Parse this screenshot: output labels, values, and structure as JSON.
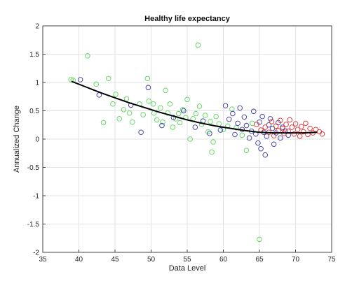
{
  "chart_data": {
    "type": "scatter",
    "title": "Healthy life expectancy",
    "xlabel": "Data Level",
    "ylabel": "Annualized Change",
    "xlim": [
      35,
      75
    ],
    "ylim": [
      -2,
      2
    ],
    "xticks": [
      35,
      40,
      45,
      50,
      55,
      60,
      65,
      70,
      75
    ],
    "yticks": [
      -2,
      -1.5,
      -1,
      -0.5,
      0,
      0.5,
      1,
      1.5,
      2
    ],
    "grid": true,
    "legend": "none",
    "colors": {
      "green": "#55d855",
      "blue": "#3a3aa8",
      "red": "#e03030",
      "fit": "#000000",
      "grid": "#e3e3e3",
      "axes": "#444444"
    },
    "series": [
      {
        "color": "green",
        "points": [
          [
            38.9,
            1.05
          ],
          [
            39.2,
            1.04
          ],
          [
            41.2,
            1.47
          ],
          [
            42.4,
            0.97
          ],
          [
            43.4,
            0.29
          ],
          [
            44.1,
            1.07
          ],
          [
            44.7,
            0.62
          ],
          [
            45.1,
            0.79
          ],
          [
            45.6,
            0.36
          ],
          [
            46.2,
            0.52
          ],
          [
            46.6,
            0.71
          ],
          [
            47.0,
            0.46
          ],
          [
            47.4,
            0.3
          ],
          [
            48.4,
            0.62
          ],
          [
            48.9,
            0.43
          ],
          [
            49.5,
            1.07
          ],
          [
            49.7,
            0.67
          ],
          [
            50.3,
            0.62
          ],
          [
            50.4,
            0.46
          ],
          [
            50.8,
            0.34
          ],
          [
            51.3,
            0.55
          ],
          [
            51.6,
            0.3
          ],
          [
            52.0,
            0.86
          ],
          [
            52.3,
            0.46
          ],
          [
            52.6,
            0.62
          ],
          [
            53.0,
            0.21
          ],
          [
            53.4,
            0.36
          ],
          [
            53.8,
            0.45
          ],
          [
            54.0,
            0.29
          ],
          [
            54.4,
            0.52
          ],
          [
            54.8,
            0.38
          ],
          [
            55.0,
            0.7
          ],
          [
            55.4,
            0.0
          ],
          [
            55.8,
            0.36
          ],
          [
            56.2,
            0.45
          ],
          [
            56.5,
            1.66
          ],
          [
            56.7,
            0.58
          ],
          [
            57.0,
            0.26
          ],
          [
            57.5,
            0.42
          ],
          [
            57.9,
            0.13
          ],
          [
            58.2,
            0.31
          ],
          [
            58.4,
            -0.23
          ],
          [
            58.6,
            -0.05
          ],
          [
            59.0,
            0.4
          ],
          [
            59.4,
            0.27
          ],
          [
            60.0,
            0.17
          ],
          [
            60.6,
            0.23
          ],
          [
            61.2,
            0.53
          ],
          [
            61.8,
            0.2
          ],
          [
            62.6,
            0.07
          ],
          [
            63.2,
            -0.2
          ],
          [
            64.0,
            0.28
          ],
          [
            65.0,
            -1.77
          ]
        ]
      },
      {
        "color": "blue",
        "points": [
          [
            40.2,
            1.05
          ],
          [
            42.8,
            0.78
          ],
          [
            47.2,
            0.6
          ],
          [
            48.6,
            0.12
          ],
          [
            49.6,
            0.91
          ],
          [
            51.5,
            0.24
          ],
          [
            53.1,
            0.38
          ],
          [
            54.5,
            0.5
          ],
          [
            56.1,
            0.21
          ],
          [
            57.2,
            0.32
          ],
          [
            58.1,
            0.1
          ],
          [
            59.6,
            0.16
          ],
          [
            60.3,
            0.59
          ],
          [
            60.8,
            0.35
          ],
          [
            61.3,
            0.45
          ],
          [
            61.6,
            0.08
          ],
          [
            62.0,
            0.28
          ],
          [
            62.3,
            0.55
          ],
          [
            62.6,
            0.17
          ],
          [
            62.9,
            0.39
          ],
          [
            63.2,
            0.24
          ],
          [
            63.6,
            0.02
          ],
          [
            63.9,
            0.14
          ],
          [
            64.2,
            0.49
          ],
          [
            64.5,
            0.09
          ],
          [
            64.8,
            -0.07
          ],
          [
            65.0,
            0.3
          ],
          [
            65.2,
            -0.17
          ],
          [
            65.4,
            0.4
          ],
          [
            65.6,
            0.12
          ],
          [
            65.8,
            -0.28
          ],
          [
            66.0,
            0.05
          ],
          [
            66.3,
            0.25
          ],
          [
            66.5,
            0.36
          ],
          [
            66.8,
            0.19
          ],
          [
            67.0,
            -0.09
          ],
          [
            67.3,
            0.11
          ],
          [
            67.6,
            0.29
          ],
          [
            67.9,
            0.02
          ],
          [
            68.2,
            0.21
          ],
          [
            68.6,
            0.14
          ],
          [
            69.0,
            0.07
          ]
        ]
      },
      {
        "color": "red",
        "points": [
          [
            64.6,
            0.26
          ],
          [
            65.2,
            0.16
          ],
          [
            65.8,
            0.21
          ],
          [
            66.3,
            0.12
          ],
          [
            66.7,
            0.31
          ],
          [
            67.0,
            0.06
          ],
          [
            67.3,
            0.23
          ],
          [
            67.6,
            0.15
          ],
          [
            67.9,
            0.33
          ],
          [
            68.2,
            0.19
          ],
          [
            68.4,
            0.1
          ],
          [
            68.7,
            0.26
          ],
          [
            69.0,
            0.14
          ],
          [
            69.2,
            0.34
          ],
          [
            69.5,
            0.21
          ],
          [
            69.8,
            0.09
          ],
          [
            70.0,
            0.27
          ],
          [
            70.3,
            0.17
          ],
          [
            70.6,
            0.05
          ],
          [
            70.8,
            0.22
          ],
          [
            71.1,
            0.13
          ],
          [
            71.4,
            0.28
          ],
          [
            71.7,
            0.08
          ],
          [
            72.0,
            0.19
          ],
          [
            72.4,
            0.11
          ],
          [
            72.8,
            0.17
          ],
          [
            73.3,
            0.13
          ],
          [
            73.7,
            0.09
          ]
        ]
      }
    ],
    "fit_line": {
      "color": "fit",
      "x": [
        39,
        41,
        43,
        45,
        47,
        49,
        51,
        53,
        55,
        57,
        59,
        61,
        63,
        65,
        67,
        69,
        71,
        73
      ],
      "y": [
        1.02,
        0.92,
        0.82,
        0.73,
        0.64,
        0.56,
        0.48,
        0.41,
        0.34,
        0.28,
        0.23,
        0.19,
        0.15,
        0.12,
        0.11,
        0.11,
        0.11,
        0.12
      ]
    }
  }
}
